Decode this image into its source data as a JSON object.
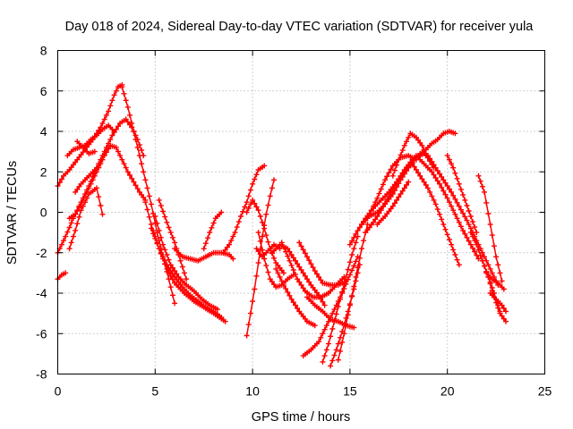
{
  "chart_data": {
    "type": "scatter",
    "title": "Day 018 of 2024, Sidereal Day-to-day VTEC variation (SDTVAR) for receiver yula",
    "xlabel": "GPS time / hours",
    "ylabel": "SDTVAR / TECUs",
    "xlim": [
      0,
      25
    ],
    "ylim": [
      -8,
      8
    ],
    "xticks": [
      0,
      5,
      10,
      15,
      20,
      25
    ],
    "yticks": [
      -8,
      -6,
      -4,
      -2,
      0,
      2,
      4,
      6,
      8
    ],
    "grid": true,
    "marker": "+",
    "color": "#ff0000",
    "series": [
      {
        "name": "track-01",
        "x": [
          0.0,
          0.3,
          0.6,
          1.0,
          1.4,
          1.8,
          2.2,
          2.6,
          2.9,
          3.1,
          3.3
        ],
        "y": [
          1.3,
          1.8,
          2.1,
          2.6,
          3.1,
          3.6,
          4.2,
          5.0,
          5.8,
          6.2,
          6.3
        ]
      },
      {
        "name": "track-02",
        "x": [
          3.3,
          3.6,
          3.9,
          4.2,
          4.5,
          4.8,
          5.1,
          5.4,
          5.7,
          6.0
        ],
        "y": [
          6.2,
          5.2,
          4.0,
          2.8,
          1.6,
          0.4,
          -1.0,
          -2.2,
          -3.3,
          -4.5
        ]
      },
      {
        "name": "track-03",
        "x": [
          0.0,
          0.2,
          0.4
        ],
        "y": [
          -3.3,
          -3.1,
          -3.0
        ]
      },
      {
        "name": "track-04",
        "x": [
          0.0,
          0.4,
          0.8,
          1.2,
          1.6,
          2.0,
          2.4,
          2.8,
          3.2,
          3.5,
          3.8,
          4.1,
          4.4
        ],
        "y": [
          -2.0,
          -1.2,
          -0.3,
          0.5,
          1.3,
          2.2,
          3.0,
          3.8,
          4.4,
          4.6,
          4.2,
          3.6,
          2.8
        ]
      },
      {
        "name": "track-05",
        "x": [
          0.6,
          0.9,
          1.2,
          1.5,
          1.8,
          2.1,
          2.4,
          2.7,
          3.0,
          3.3,
          3.6,
          3.9,
          4.2,
          4.5
        ],
        "y": [
          -0.3,
          -0.1,
          0.4,
          1.0,
          1.6,
          2.2,
          2.8,
          3.3,
          3.2,
          2.6,
          2.0,
          1.5,
          1.0,
          0.6
        ]
      },
      {
        "name": "track-06",
        "x": [
          0.5,
          0.8,
          1.1,
          1.4,
          1.7,
          2.0,
          2.3,
          2.6,
          2.9
        ],
        "y": [
          2.8,
          3.1,
          3.2,
          3.3,
          3.6,
          3.8,
          4.1,
          4.3,
          4.0
        ]
      },
      {
        "name": "track-07",
        "x": [
          0.6,
          0.9,
          1.2,
          1.6,
          2.0,
          2.3
        ],
        "y": [
          -1.8,
          -0.9,
          0.1,
          0.9,
          1.2,
          -0.1
        ]
      },
      {
        "name": "track-08",
        "x": [
          0.9,
          1.2,
          1.5,
          1.8,
          2.1
        ],
        "y": [
          1.0,
          1.4,
          1.7,
          2.0,
          2.3
        ]
      },
      {
        "name": "track-09",
        "x": [
          1.0,
          1.3,
          1.6,
          1.9
        ],
        "y": [
          3.5,
          3.2,
          2.9,
          3.0
        ]
      },
      {
        "name": "track-10",
        "x": [
          4.5,
          4.8,
          5.2,
          5.6,
          6.0,
          6.5,
          7.0,
          7.5,
          8.0,
          8.3,
          8.6
        ],
        "y": [
          0.5,
          -0.6,
          -1.8,
          -2.8,
          -3.5,
          -4.0,
          -4.4,
          -4.7,
          -5.0,
          -5.2,
          -5.4
        ]
      },
      {
        "name": "track-11",
        "x": [
          4.8,
          5.2,
          5.6,
          6.0,
          6.4,
          6.8,
          7.2,
          7.6,
          8.0,
          8.4
        ],
        "y": [
          -0.8,
          -1.8,
          -2.6,
          -3.2,
          -3.7,
          -4.1,
          -4.4,
          -4.7,
          -4.9,
          -5.2
        ]
      },
      {
        "name": "track-12",
        "x": [
          5.0,
          5.4,
          5.8,
          6.2,
          6.6,
          7.0,
          7.4,
          7.8,
          8.2
        ],
        "y": [
          -0.2,
          -1.6,
          -2.6,
          -3.2,
          -3.6,
          -3.9,
          -4.3,
          -4.6,
          -4.8
        ]
      },
      {
        "name": "track-13",
        "x": [
          5.2,
          5.6,
          6.0,
          6.3,
          6.6
        ],
        "y": [
          0.6,
          -0.5,
          -1.5,
          -2.4,
          -3.3
        ]
      },
      {
        "name": "track-14",
        "x": [
          6.0,
          6.4,
          6.8,
          7.2,
          7.6,
          8.0,
          8.4,
          8.8,
          9.0
        ],
        "y": [
          -1.8,
          -2.2,
          -2.3,
          -2.4,
          -2.2,
          -2.0,
          -2.0,
          -2.1,
          -2.3
        ]
      },
      {
        "name": "track-15",
        "x": [
          7.5,
          7.8,
          8.1,
          8.4
        ],
        "y": [
          -1.8,
          -1.0,
          -0.3,
          0.0
        ]
      },
      {
        "name": "track-16",
        "x": [
          8.5,
          8.8,
          9.1,
          9.4,
          9.7,
          10.0,
          10.3,
          10.6
        ],
        "y": [
          -2.0,
          -1.6,
          -1.0,
          -0.2,
          0.5,
          1.4,
          2.1,
          2.3
        ]
      },
      {
        "name": "track-17",
        "x": [
          9.7,
          9.9,
          10.1,
          10.3,
          10.5,
          10.7,
          10.9,
          11.1
        ],
        "y": [
          -6.1,
          -5.0,
          -3.8,
          -2.5,
          -1.2,
          -0.1,
          0.8,
          1.6
        ]
      },
      {
        "name": "track-18",
        "x": [
          9.7,
          10.0,
          10.3,
          10.6,
          10.9,
          11.2,
          11.6
        ],
        "y": [
          0.0,
          0.6,
          0.1,
          -0.8,
          -1.8,
          -2.5,
          -3.0
        ]
      },
      {
        "name": "track-19",
        "x": [
          10.3,
          10.6,
          10.9,
          11.2,
          11.5,
          11.8,
          12.1
        ],
        "y": [
          -1.0,
          -2.3,
          -3.3,
          -3.7,
          -3.6,
          -3.3,
          -3.1
        ]
      },
      {
        "name": "track-20",
        "x": [
          10.2,
          10.5,
          10.8,
          11.1,
          11.4
        ],
        "y": [
          -1.8,
          -2.2,
          -1.9,
          -1.6,
          -1.8
        ]
      },
      {
        "name": "track-21",
        "x": [
          11.0,
          11.4,
          11.8,
          12.2,
          12.6,
          13.0,
          13.4,
          13.7
        ],
        "y": [
          -2.0,
          -1.6,
          -1.8,
          -2.4,
          -3.0,
          -3.6,
          -4.1,
          -4.6
        ]
      },
      {
        "name": "track-22",
        "x": [
          11.2,
          11.6,
          12.0,
          12.4,
          12.8,
          13.2
        ],
        "y": [
          -2.8,
          -3.6,
          -4.3,
          -4.9,
          -5.4,
          -5.6
        ]
      },
      {
        "name": "track-23",
        "x": [
          11.5,
          11.9,
          12.3,
          12.7,
          13.1,
          13.5,
          13.9,
          14.3,
          14.7
        ],
        "y": [
          -1.5,
          -2.4,
          -3.3,
          -3.9,
          -4.2,
          -4.2,
          -4.0,
          -3.6,
          -3.2
        ]
      },
      {
        "name": "track-24",
        "x": [
          12.4,
          12.8,
          13.2,
          13.6,
          14.0,
          14.4,
          14.8
        ],
        "y": [
          -1.5,
          -2.2,
          -2.9,
          -3.5,
          -3.6,
          -3.6,
          -3.4
        ]
      },
      {
        "name": "track-25",
        "x": [
          12.8,
          13.2,
          13.6,
          14.0,
          14.4,
          14.8,
          15.2
        ],
        "y": [
          -4.2,
          -4.6,
          -4.9,
          -5.3,
          -5.4,
          -5.6,
          -5.7
        ]
      },
      {
        "name": "track-26",
        "x": [
          12.6,
          13.0,
          13.4,
          13.8,
          14.2,
          14.6,
          15.0,
          15.4
        ],
        "y": [
          -7.1,
          -6.8,
          -6.4,
          -5.6,
          -4.8,
          -4.0,
          -3.1,
          -2.2
        ]
      },
      {
        "name": "track-27",
        "x": [
          13.6,
          13.9,
          14.2,
          14.5,
          14.8,
          15.1,
          15.4
        ],
        "y": [
          -7.4,
          -6.5,
          -5.4,
          -4.3,
          -3.2,
          -2.1,
          -1.2
        ]
      },
      {
        "name": "track-28",
        "x": [
          14.4,
          14.7,
          15.0,
          15.3,
          15.6,
          15.9
        ],
        "y": [
          -7.3,
          -6.0,
          -4.6,
          -3.2,
          -1.8,
          -0.6
        ]
      },
      {
        "name": "track-29",
        "x": [
          14.0,
          14.3,
          14.6,
          14.9,
          15.2,
          15.5
        ],
        "y": [
          -7.6,
          -6.8,
          -5.9,
          -4.9,
          -3.8,
          -2.6
        ]
      },
      {
        "name": "track-30",
        "x": [
          15.0,
          15.4,
          15.8,
          16.2,
          16.6,
          17.0,
          17.4,
          17.8,
          18.2
        ],
        "y": [
          -1.6,
          -0.9,
          -0.3,
          0.2,
          0.6,
          1.0,
          1.5,
          2.0,
          2.6
        ]
      },
      {
        "name": "track-31",
        "x": [
          15.6,
          16.0,
          16.4,
          16.8,
          17.2,
          17.6,
          18.0,
          18.4,
          18.8,
          19.2
        ],
        "y": [
          -0.6,
          -0.2,
          0.0,
          0.4,
          0.9,
          1.6,
          2.2,
          2.7,
          2.9,
          2.5
        ]
      },
      {
        "name": "track-32",
        "x": [
          15.8,
          16.2,
          16.6,
          17.0,
          17.4,
          17.8,
          18.2,
          18.5
        ],
        "y": [
          -1.0,
          -0.5,
          0.1,
          0.8,
          1.5,
          2.1,
          2.6,
          2.8
        ]
      },
      {
        "name": "track-33",
        "x": [
          16.0,
          16.4,
          16.8,
          17.2,
          17.6,
          18.0,
          18.4
        ],
        "y": [
          -0.1,
          0.7,
          1.6,
          2.3,
          2.7,
          2.8,
          2.6
        ]
      },
      {
        "name": "track-34",
        "x": [
          16.4,
          16.8,
          17.2,
          17.6,
          18.0
        ],
        "y": [
          -0.6,
          -0.2,
          0.3,
          0.9,
          1.5
        ]
      },
      {
        "name": "track-35",
        "x": [
          17.2,
          17.5,
          17.8,
          18.1,
          18.4,
          18.7,
          19.0,
          19.3
        ],
        "y": [
          1.8,
          2.6,
          3.3,
          3.9,
          3.7,
          3.3,
          2.7,
          2.2
        ]
      },
      {
        "name": "track-36",
        "x": [
          18.0,
          18.3,
          18.6,
          18.9,
          19.2,
          19.5,
          19.8,
          20.1,
          20.4
        ],
        "y": [
          2.2,
          2.6,
          2.9,
          3.1,
          3.4,
          3.6,
          3.9,
          4.0,
          3.9
        ]
      },
      {
        "name": "track-37",
        "x": [
          18.4,
          18.8,
          19.2,
          19.6,
          20.0,
          20.4,
          20.8,
          21.2,
          21.6
        ],
        "y": [
          2.8,
          2.4,
          2.0,
          1.4,
          0.7,
          -0.1,
          -0.9,
          -1.6,
          -2.3
        ]
      },
      {
        "name": "track-38",
        "x": [
          18.2,
          18.6,
          19.0,
          19.4,
          19.8,
          20.2,
          20.6
        ],
        "y": [
          2.4,
          1.8,
          1.2,
          0.4,
          -0.6,
          -1.6,
          -2.6
        ]
      },
      {
        "name": "track-39",
        "x": [
          19.0,
          19.4,
          19.8,
          20.2,
          20.6,
          21.0,
          21.4,
          21.8,
          22.2,
          22.6
        ],
        "y": [
          2.8,
          2.2,
          1.6,
          1.0,
          0.3,
          -0.4,
          -1.2,
          -2.0,
          -2.8,
          -3.6
        ]
      },
      {
        "name": "track-40",
        "x": [
          20.0,
          20.3,
          20.6,
          20.9,
          21.2,
          21.5
        ],
        "y": [
          2.8,
          2.2,
          1.4,
          0.6,
          -0.2,
          -1.0
        ]
      },
      {
        "name": "track-41",
        "x": [
          21.2,
          21.5,
          21.8,
          22.1,
          22.4,
          22.7
        ],
        "y": [
          -1.0,
          -1.6,
          -2.4,
          -3.2,
          -4.0,
          -4.9
        ]
      },
      {
        "name": "track-42",
        "x": [
          21.6,
          21.9,
          22.2,
          22.5,
          22.8
        ],
        "y": [
          1.8,
          1.0,
          -0.6,
          -2.2,
          -3.4
        ]
      },
      {
        "name": "track-43",
        "x": [
          21.8,
          22.1,
          22.4,
          22.7,
          23.0
        ],
        "y": [
          -2.4,
          -3.2,
          -4.2,
          -5.0,
          -5.4
        ]
      },
      {
        "name": "track-44",
        "x": [
          22.0,
          22.3,
          22.6,
          22.9
        ],
        "y": [
          -3.0,
          -3.3,
          -3.5,
          -3.8
        ]
      },
      {
        "name": "track-45",
        "x": [
          22.2,
          22.5,
          22.8,
          23.0
        ],
        "y": [
          -4.0,
          -4.3,
          -4.6,
          -4.9
        ]
      }
    ]
  }
}
